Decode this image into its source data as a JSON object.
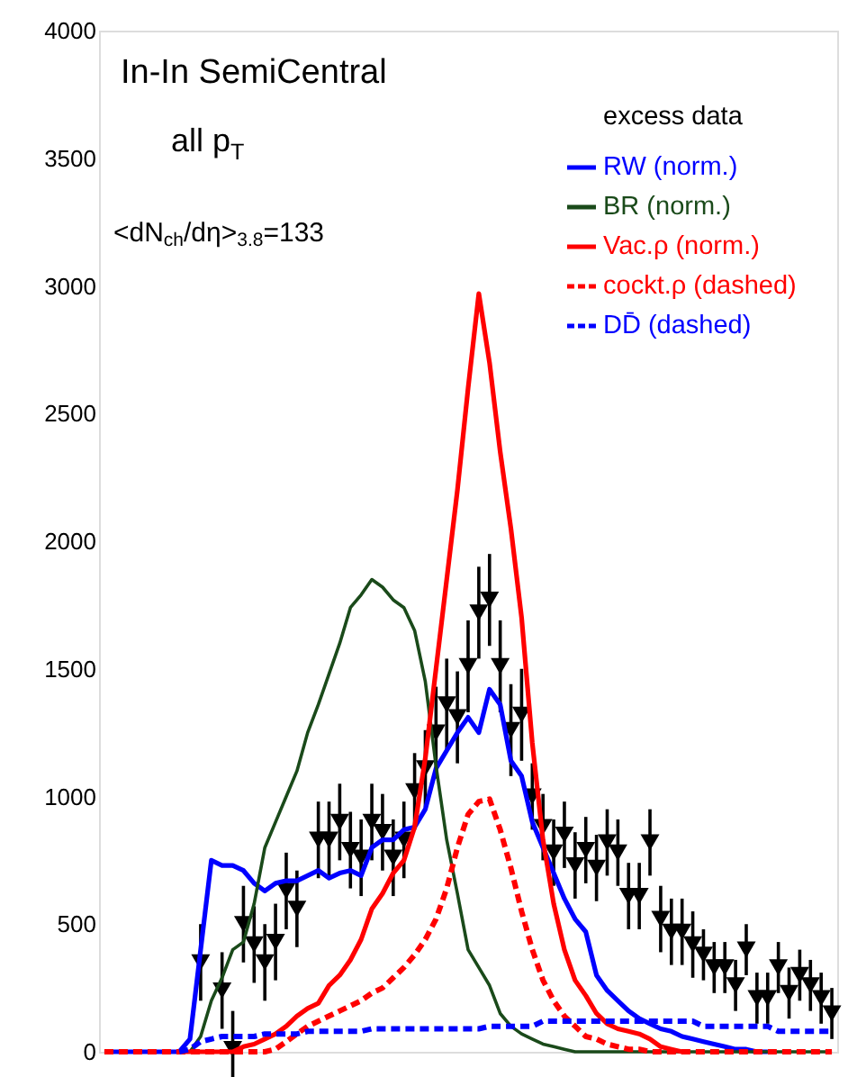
{
  "chart_data": {
    "type": "line",
    "title": "In-In SemiCentral",
    "annotations": [
      "all p$_{T}$",
      "<dN$_{ch}$/dη>$_{3.8}$=133"
    ],
    "legend_title": "excess data",
    "legend": "top right",
    "tick_labels": "y",
    "ylim": [
      0,
      4000
    ],
    "yticks": [
      0,
      500,
      1000,
      1500,
      2000,
      2500,
      3000,
      3500,
      4000
    ],
    "categories": [
      null,
      null,
      null,
      null,
      null,
      null,
      null,
      null,
      null,
      null,
      null,
      null,
      null,
      null,
      null,
      null,
      null,
      null,
      null,
      null,
      null,
      null,
      null,
      null,
      null,
      null,
      null,
      null,
      null,
      null,
      null,
      null,
      null,
      null,
      null,
      null,
      null,
      null,
      null,
      null,
      null,
      null,
      null,
      null,
      null,
      null,
      null,
      null,
      null,
      null,
      null,
      null,
      null,
      null,
      null,
      null,
      null,
      null,
      null,
      null,
      null,
      null,
      null,
      null,
      null,
      null,
      null,
      null,
      null
    ],
    "series": [
      {
        "type": "scatter",
        "marker": "triangle",
        "color": "#000000",
        "values": [
          null,
          null,
          null,
          null,
          null,
          null,
          null,
          null,
          null,
          350,
          null,
          240,
          10,
          500,
          420,
          350,
          430,
          630,
          560,
          null,
          830,
          830,
          900,
          790,
          760,
          900,
          860,
          760,
          830,
          1020,
          1110,
          1250,
          1360,
          1310,
          1510,
          1720,
          1770,
          1510,
          1260,
          1320,
          1000,
          880,
          780,
          850,
          730,
          790,
          720,
          820,
          780,
          610,
          610,
          820,
          520,
          470,
          470,
          420,
          380,
          330,
          330,
          260,
          400,
          210,
          210,
          330,
          230,
          300,
          260,
          210,
          150
        ],
        "errors": [
          null,
          null,
          null,
          null,
          null,
          null,
          null,
          null,
          null,
          150,
          null,
          150,
          150,
          150,
          150,
          150,
          150,
          150,
          150,
          null,
          150,
          150,
          150,
          150,
          150,
          150,
          150,
          150,
          150,
          150,
          150,
          180,
          180,
          180,
          180,
          180,
          180,
          180,
          180,
          180,
          130,
          130,
          130,
          130,
          130,
          130,
          130,
          130,
          130,
          130,
          130,
          130,
          130,
          130,
          130,
          130,
          100,
          100,
          100,
          100,
          100,
          100,
          100,
          100,
          100,
          100,
          100,
          100,
          100
        ]
      },
      {
        "name": "RW (norm.)",
        "color": "#0000ff",
        "values": [
          0,
          0,
          0,
          0,
          0,
          0,
          0,
          0,
          50,
          400,
          750,
          730,
          730,
          710,
          660,
          630,
          660,
          670,
          670,
          690,
          710,
          680,
          700,
          710,
          690,
          800,
          830,
          830,
          870,
          880,
          950,
          1110,
          1180,
          1250,
          1310,
          1250,
          1420,
          1360,
          1140,
          1080,
          900,
          800,
          700,
          600,
          520,
          470,
          300,
          240,
          200,
          160,
          130,
          110,
          90,
          80,
          60,
          50,
          40,
          30,
          20,
          10,
          10,
          0,
          0,
          null,
          null,
          null,
          null,
          null,
          null
        ]
      },
      {
        "name": "BR (norm.)",
        "color": "#1a4a1a",
        "values": [
          null,
          null,
          null,
          null,
          null,
          null,
          null,
          null,
          0,
          60,
          200,
          290,
          400,
          430,
          580,
          800,
          900,
          1000,
          1100,
          1250,
          1360,
          1480,
          1600,
          1740,
          1790,
          1850,
          1820,
          1770,
          1740,
          1650,
          1450,
          1120,
          830,
          620,
          400,
          330,
          260,
          150,
          100,
          70,
          50,
          30,
          20,
          10,
          0,
          0,
          0,
          0,
          0,
          0,
          0,
          0,
          0,
          0,
          0,
          0,
          0,
          0,
          0,
          0,
          0,
          0,
          0,
          0,
          0,
          0,
          0,
          0,
          0
        ]
      },
      {
        "name": "Vac.ρ (norm.)",
        "color": "#ff0000",
        "values": [
          null,
          null,
          null,
          null,
          null,
          null,
          null,
          0,
          0,
          0,
          0,
          0,
          0,
          20,
          30,
          50,
          70,
          100,
          140,
          170,
          190,
          260,
          300,
          360,
          440,
          560,
          620,
          700,
          750,
          880,
          1150,
          1500,
          1850,
          2200,
          2600,
          2970,
          2700,
          2350,
          2050,
          1700,
          1210,
          830,
          580,
          400,
          280,
          220,
          150,
          110,
          90,
          80,
          70,
          50,
          20,
          10,
          0,
          null,
          null,
          null,
          null,
          null,
          null,
          null,
          null,
          null,
          null,
          null,
          null,
          null,
          null
        ]
      },
      {
        "name": "cockt.ρ (dashed)",
        "color": "#ff0000",
        "line_style": "dashed",
        "values": [
          0,
          0,
          0,
          0,
          0,
          0,
          0,
          0,
          0,
          0,
          0,
          0,
          0,
          0,
          0,
          0,
          10,
          40,
          70,
          100,
          120,
          140,
          160,
          180,
          200,
          230,
          250,
          290,
          330,
          380,
          440,
          520,
          640,
          800,
          930,
          980,
          990,
          870,
          720,
          550,
          400,
          280,
          200,
          140,
          100,
          60,
          50,
          30,
          20,
          10,
          10,
          0,
          0,
          0,
          0,
          0,
          0,
          0,
          0,
          0,
          0,
          0,
          0,
          0,
          0,
          0,
          0,
          0,
          0
        ]
      },
      {
        "name": "DD̄ (dashed)",
        "color": "#0000ff",
        "line_style": "dashed",
        "values": [
          null,
          null,
          null,
          null,
          null,
          null,
          null,
          0,
          10,
          40,
          50,
          60,
          60,
          60,
          60,
          70,
          70,
          70,
          70,
          80,
          80,
          80,
          80,
          80,
          80,
          90,
          90,
          90,
          90,
          90,
          90,
          90,
          90,
          90,
          90,
          90,
          100,
          100,
          100,
          100,
          100,
          120,
          120,
          120,
          120,
          120,
          120,
          120,
          120,
          120,
          120,
          120,
          120,
          120,
          120,
          120,
          100,
          100,
          100,
          100,
          100,
          100,
          100,
          80,
          80,
          80,
          80,
          80,
          80
        ]
      }
    ]
  }
}
